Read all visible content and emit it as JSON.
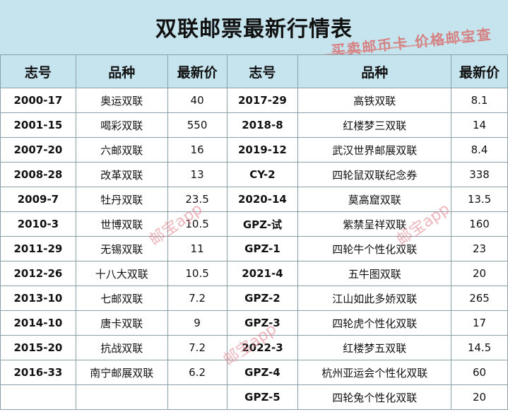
{
  "title": "双联邮票最新行情表",
  "stamp_text": "买卖邮币卡 价格邮宝查",
  "watermark": "邮宝app",
  "headers": [
    "志号",
    "品种",
    "最新价",
    "志号",
    "品种",
    "最新价"
  ],
  "rows": [
    {
      "code1": "2000-17",
      "name1": "奥运双联",
      "price1": "40",
      "code2": "2017-29",
      "name2": "高铁双联",
      "price2": "8.1"
    },
    {
      "code1": "2001-15",
      "name1": "喝彩双联",
      "price1": "550",
      "code2": "2018-8",
      "name2": "红楼梦三双联",
      "price2": "14"
    },
    {
      "code1": "2007-20",
      "name1": "六邮双联",
      "price1": "16",
      "code2": "2019-12",
      "name2": "武汉世界邮展双联",
      "price2": "8.4"
    },
    {
      "code1": "2008-28",
      "name1": "改革双联",
      "price1": "13",
      "code2": "CY-2",
      "name2": "四轮鼠双联纪念券",
      "price2": "338"
    },
    {
      "code1": "2009-7",
      "name1": "牡丹双联",
      "price1": "23.5",
      "code2": "2020-14",
      "name2": "莫高窟双联",
      "price2": "13.5"
    },
    {
      "code1": "2010-3",
      "name1": "世博双联",
      "price1": "10.5",
      "code2": "GPZ-试",
      "name2": "紫禁呈祥双联",
      "price2": "160"
    },
    {
      "code1": "2011-29",
      "name1": "无锡双联",
      "price1": "11",
      "code2": "GPZ-1",
      "name2": "四轮牛个性化双联",
      "price2": "23"
    },
    {
      "code1": "2012-26",
      "name1": "十八大双联",
      "price1": "10.5",
      "code2": "2021-4",
      "name2": "五牛图双联",
      "price2": "20"
    },
    {
      "code1": "2013-10",
      "name1": "七邮双联",
      "price1": "7.2",
      "code2": "GPZ-2",
      "name2": "江山如此多娇双联",
      "price2": "265"
    },
    {
      "code1": "2014-10",
      "name1": "唐卡双联",
      "price1": "9",
      "code2": "GPZ-3",
      "name2": "四轮虎个性化双联",
      "price2": "17"
    },
    {
      "code1": "2015-20",
      "name1": "抗战双联",
      "price1": "7.2",
      "code2": "2022-3",
      "name2": "红楼梦五双联",
      "price2": "14.5"
    },
    {
      "code1": "2016-33",
      "name1": "南宁邮展双联",
      "price1": "6.2",
      "code2": "GPZ-4",
      "name2": "杭州亚运会个性化双联",
      "price2": "60"
    },
    {
      "code1": "",
      "name1": "",
      "price1": "",
      "code2": "GPZ-5",
      "name2": "四轮兔个性化双联",
      "price2": "20"
    }
  ]
}
